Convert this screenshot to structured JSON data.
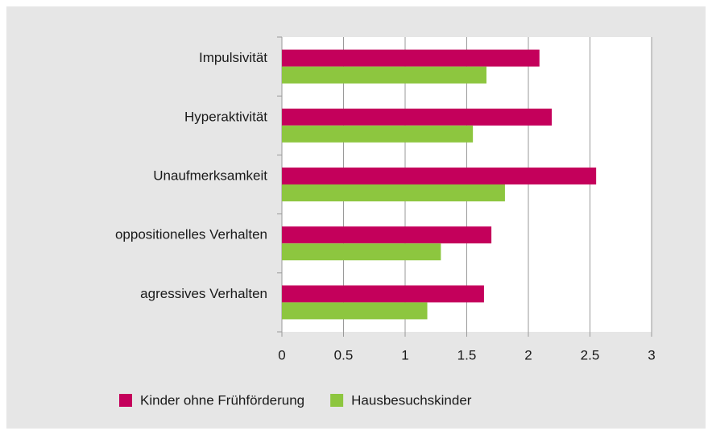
{
  "chart_data": {
    "type": "bar",
    "orientation": "horizontal",
    "categories": [
      "Impulsivität",
      "Hyperaktivität",
      "Unaufmerksamkeit",
      "oppositionelles Verhalten",
      "agressives Verhalten"
    ],
    "series": [
      {
        "name": "Kinder ohne Frühförderung",
        "color": "#c4005b",
        "values": [
          2.09,
          2.19,
          2.55,
          1.7,
          1.64
        ]
      },
      {
        "name": "Hausbesuchskinder",
        "color": "#8dc63f",
        "values": [
          1.66,
          1.55,
          1.81,
          1.29,
          1.18
        ]
      }
    ],
    "xlim": [
      0,
      3
    ],
    "xticks": [
      0,
      0.5,
      1,
      1.5,
      2,
      2.5,
      3
    ],
    "grid": true,
    "legend": "bottom"
  }
}
